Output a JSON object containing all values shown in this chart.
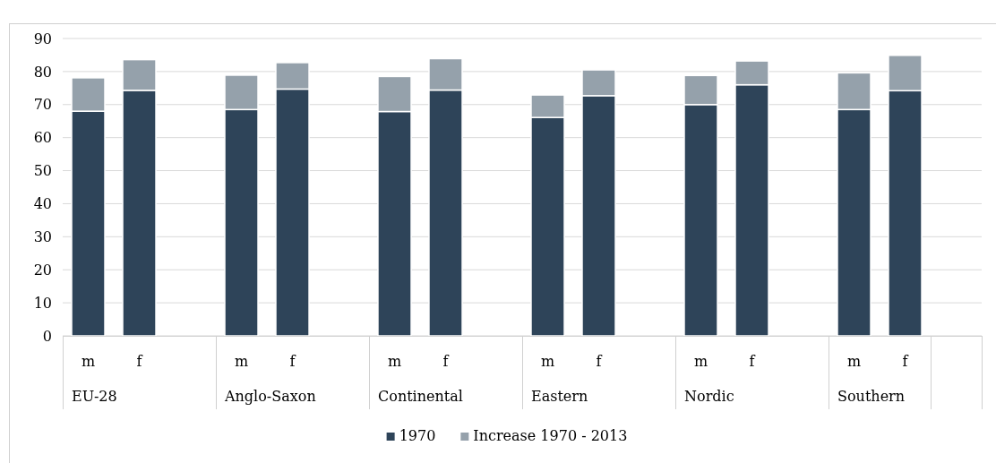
{
  "chart_data": {
    "type": "bar",
    "stacked": true,
    "categories": [
      "m",
      "f",
      null,
      "m",
      "f",
      null,
      "m",
      "f",
      null,
      "m",
      "f",
      null,
      "m",
      "f",
      null,
      "m",
      "f",
      null
    ],
    "annotations": [
      "EU-28",
      "Anglo-Saxon",
      "Continental",
      "Eastern",
      "Nordic",
      "Southern"
    ],
    "series": [
      {
        "name": "1970",
        "color": "#2e4459",
        "values": [
          68.0,
          74.3,
          null,
          68.5,
          74.7,
          null,
          67.9,
          74.4,
          null,
          66.1,
          72.7,
          null,
          70.0,
          76.0,
          null,
          68.5,
          74.2,
          null
        ]
      },
      {
        "name": "Increase 1970 - 2013",
        "color": "#95a1ab",
        "values": [
          10.1,
          9.3,
          null,
          10.4,
          8.0,
          null,
          10.6,
          9.5,
          null,
          6.8,
          7.8,
          null,
          8.8,
          7.2,
          null,
          11.1,
          10.7,
          null
        ]
      }
    ],
    "ylim": [
      0,
      90
    ],
    "yticks": [
      0,
      10,
      20,
      30,
      40,
      50,
      60,
      70,
      80,
      90
    ],
    "grid": "y",
    "legend": "bottom"
  }
}
